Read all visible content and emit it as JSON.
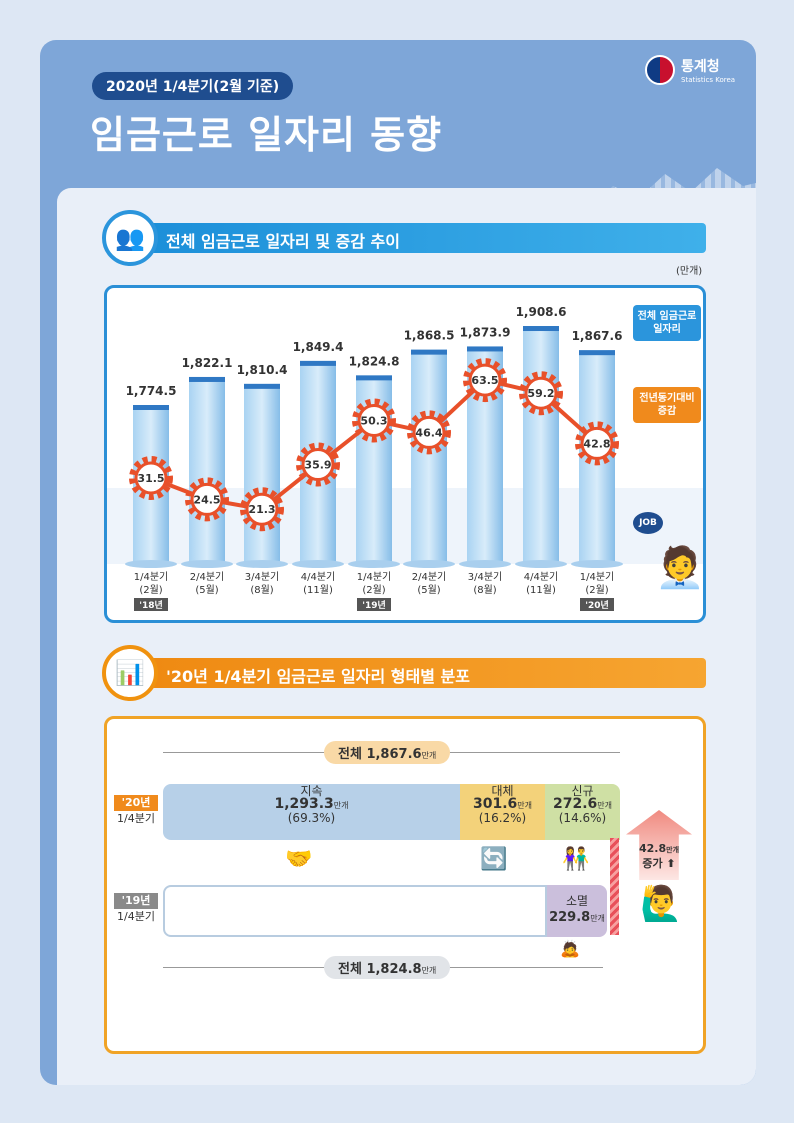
{
  "header": {
    "badge": "2020년 1/4분기(2월 기준)",
    "title": "임금근로 일자리 동향",
    "logo_name": "통계청",
    "logo_sub": "Statistics Korea"
  },
  "section1": {
    "title": "전체 임금근로 일자리 및 증감 추이",
    "unit": "(만개)",
    "legend_total": "전체 임금근로 일자리",
    "legend_change": "전년동기대비 증감",
    "job_sign": "JOB"
  },
  "chart_data": {
    "type": "bar",
    "categories": [
      "1/4분기 (2월)",
      "2/4분기 (5월)",
      "3/4분기 (8월)",
      "4/4분기 (11월)",
      "1/4분기 (2월)",
      "2/4분기 (5월)",
      "3/4분기 (8월)",
      "4/4분기 (11월)",
      "1/4분기 (2월)"
    ],
    "year_tags": [
      "'18년",
      "",
      "",
      "",
      "'19년",
      "",
      "",
      "",
      "'20년"
    ],
    "series": [
      {
        "name": "전체 임금근로 일자리",
        "type": "bar",
        "values": [
          1774.5,
          1822.1,
          1810.4,
          1849.4,
          1824.8,
          1868.5,
          1873.9,
          1908.6,
          1867.6
        ],
        "labels": [
          "1,774.5",
          "1,822.1",
          "1,810.4",
          "1,849.4",
          "1,824.8",
          "1,868.5",
          "1,873.9",
          "1,908.6",
          "1,867.6"
        ],
        "color": "#8fc3ea"
      },
      {
        "name": "전년동기대비 증감",
        "type": "line",
        "values": [
          31.5,
          24.5,
          21.3,
          35.9,
          50.3,
          46.4,
          63.5,
          59.2,
          42.8
        ],
        "color": "#e8502a"
      }
    ],
    "unit": "(만개)"
  },
  "section2": {
    "title": "'20년 1/4분기 임금근로 일자리 형태별 분포",
    "total_2020": {
      "label": "전체",
      "value": "1,867.6",
      "unit": "만개"
    },
    "total_2019": {
      "label": "전체",
      "value": "1,824.8",
      "unit": "만개"
    },
    "row2020": {
      "year": "'20년",
      "quarter": "1/4분기"
    },
    "row2019": {
      "year": "'19년",
      "quarter": "1/4분기"
    },
    "segments": [
      {
        "name": "지속",
        "value": "1,293.3",
        "unit": "만개",
        "pct": "(69.3%)",
        "color": "#b7d0e8"
      },
      {
        "name": "대체",
        "value": "301.6",
        "unit": "만개",
        "pct": "(16.2%)",
        "color": "#f3d27a"
      },
      {
        "name": "신규",
        "value": "272.6",
        "unit": "만개",
        "pct": "(14.6%)",
        "color": "#cfe0a4"
      }
    ],
    "extinct": {
      "name": "소멸",
      "value": "229.8",
      "unit": "만개",
      "color": "#cbbfdc"
    },
    "increase": {
      "value": "42.8",
      "unit": "만개",
      "label": "증가"
    }
  }
}
